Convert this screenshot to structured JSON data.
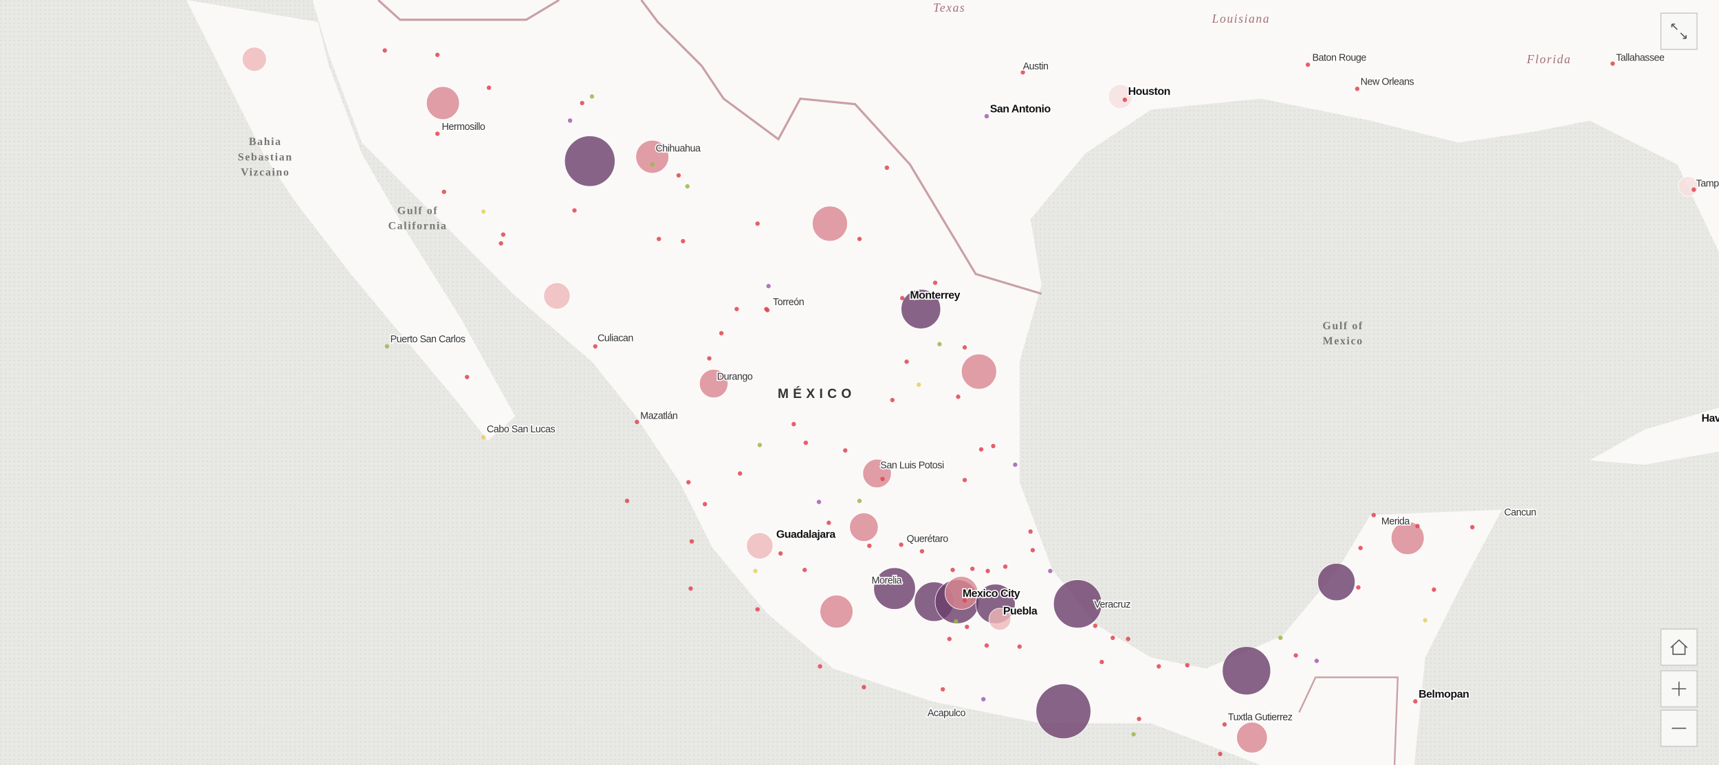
{
  "labels": {
    "states": [
      "Texas",
      "Louisiana",
      "Florida"
    ],
    "water": [
      "Bahia",
      "Sebastian",
      "Vizcaino",
      "Gulf of",
      "California",
      "Gulf of",
      "Mexico"
    ],
    "country": "MÉXICO",
    "cities": [
      "Austin",
      "Baton Rouge",
      "New Orleans",
      "Tallahassee",
      "Houston",
      "San Antonio",
      "Tampa",
      "Hermosillo",
      "Chihuahua",
      "Monterrey",
      "Torreón",
      "Culiacan",
      "Puerto San Carlos",
      "Durango",
      "Mazatlán",
      "Cabo San Lucas",
      "San Luis Potosi",
      "Querétaro",
      "Guadalajara",
      "Morelia",
      "Mexico City",
      "Puebla",
      "Veracruz",
      "Merida",
      "Cancun",
      "Belmopan",
      "Acapulco",
      "Tuxtla Gutierrez",
      "Hav"
    ]
  }
}
